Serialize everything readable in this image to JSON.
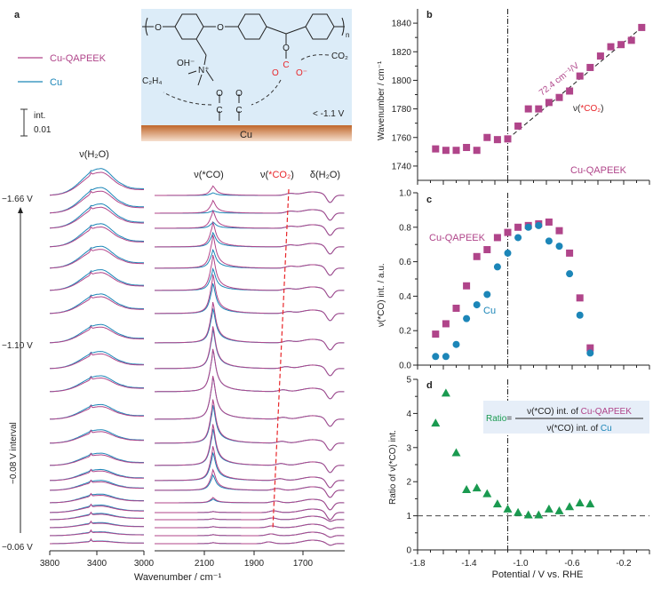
{
  "panel_a": {
    "label": "a",
    "legend": [
      {
        "name": "Cu-QAPEEK",
        "color": "#b0458a"
      },
      {
        "name": "Cu",
        "color": "#1c86b8"
      }
    ],
    "scale_bar": {
      "line1": "int.",
      "line2": "0.01"
    },
    "scheme": {
      "oh": "OH⁻",
      "n_plus": "N⁺",
      "o": "O",
      "n_sub": "n",
      "co2": "CO₂",
      "c2h4": "C₂H₄",
      "carboxylate_c": "C",
      "carboxylate_o1": "O",
      "carboxylate_o2": "O⁻",
      "co_c": "C",
      "co_o": "O",
      "potential": "< -1.1 V",
      "surface": "Cu"
    },
    "peak_labels": {
      "water": "ν(H₂O)",
      "co": "ν(*CO)",
      "co2_prefix": "ν(",
      "co2_mid": "*CO₂",
      "co2_suffix": ")",
      "bend": "δ(H₂O)"
    },
    "potential_labels": {
      "top": "−1.66 V",
      "mid": "−1.10 V",
      "bottom": "−0.06 V",
      "interval": "−0.08 V interval"
    },
    "xlabel": "Wavenumber / cm⁻¹",
    "xticks_left": [
      "3800",
      "3400",
      "3000"
    ],
    "xticks_right": [
      "2100",
      "1900",
      "1700"
    ]
  },
  "chart_data": [
    {
      "id": "b",
      "type": "scatter",
      "panel_label": "b",
      "ylabel": "Wavenumber / cm⁻¹",
      "xlim": [
        -1.8,
        0.0
      ],
      "ylim": [
        1730,
        1850
      ],
      "yticks": [
        "1740",
        "1760",
        "1780",
        "1800",
        "1820",
        "1840"
      ],
      "annotations": {
        "slope": "72.4 cm⁻¹/V",
        "species_prefix": "ν(",
        "species_mid": "*CO₂",
        "species_suffix": ")",
        "sample": "Cu-QAPEEK"
      },
      "fit_line": {
        "x": [
          -1.1,
          -0.06
        ],
        "y": [
          1759,
          1837
        ]
      },
      "vline_x": -1.1,
      "series": [
        {
          "name": "Cu-QAPEEK",
          "color": "#b0458a",
          "marker": "square",
          "x": [
            -1.66,
            -1.58,
            -1.5,
            -1.42,
            -1.34,
            -1.26,
            -1.18,
            -1.1,
            -1.02,
            -0.94,
            -0.86,
            -0.78,
            -0.7,
            -0.62,
            -0.54,
            -0.46,
            -0.38,
            -0.3,
            -0.22,
            -0.14,
            -0.06
          ],
          "y": [
            1752,
            1751,
            1751,
            1753,
            1751,
            1760,
            1758.5,
            1759,
            1768,
            1780,
            1780,
            1784.5,
            1788,
            1792.5,
            1803,
            1809,
            1817,
            1823.5,
            1825,
            1828,
            1837
          ]
        }
      ]
    },
    {
      "id": "c",
      "type": "scatter",
      "panel_label": "c",
      "ylabel": "ν(*CO) int. / a.u.",
      "xlim": [
        -1.8,
        0.0
      ],
      "ylim": [
        0,
        1.0
      ],
      "yticks": [
        "0.0",
        "0.2",
        "0.4",
        "0.6",
        "0.8",
        "1.0"
      ],
      "vline_x": -1.1,
      "series": [
        {
          "name": "Cu-QAPEEK",
          "color": "#b0458a",
          "marker": "square",
          "x": [
            -1.66,
            -1.58,
            -1.5,
            -1.42,
            -1.34,
            -1.26,
            -1.18,
            -1.1,
            -1.02,
            -0.94,
            -0.86,
            -0.78,
            -0.7,
            -0.62,
            -0.54,
            -0.46
          ],
          "y": [
            0.18,
            0.24,
            0.33,
            0.46,
            0.63,
            0.67,
            0.74,
            0.77,
            0.8,
            0.81,
            0.82,
            0.83,
            0.78,
            0.65,
            0.39,
            0.1
          ]
        },
        {
          "name": "Cu",
          "color": "#1c86b8",
          "marker": "circle",
          "x": [
            -1.66,
            -1.58,
            -1.5,
            -1.42,
            -1.34,
            -1.26,
            -1.18,
            -1.1,
            -1.02,
            -0.94,
            -0.86,
            -0.78,
            -0.7,
            -0.62,
            -0.54,
            -0.46
          ],
          "y": [
            0.05,
            0.05,
            0.12,
            0.27,
            0.35,
            0.41,
            0.57,
            0.65,
            0.74,
            0.8,
            0.81,
            0.72,
            0.69,
            0.53,
            0.29,
            0.07
          ]
        }
      ]
    },
    {
      "id": "d",
      "type": "scatter",
      "panel_label": "d",
      "ylabel": "Ratio of ν(*CO) int.",
      "xlabel": "Potential / V vs. RHE",
      "xlim": [
        -1.8,
        0.0
      ],
      "ylim": [
        0,
        5
      ],
      "xticks": [
        "-1.8",
        "-1.4",
        "-1.0",
        "-0.6",
        "-0.2"
      ],
      "yticks": [
        "0",
        "1",
        "2",
        "3",
        "4",
        "5"
      ],
      "vline_x": -1.1,
      "hline_y": 1,
      "formula": {
        "lhs": "Ratio",
        "eq": "=",
        "num_prefix": "ν(*CO) int. of ",
        "num_sample": "Cu-QAPEEK",
        "den_prefix": "ν(*CO) int. of ",
        "den_sample": "Cu"
      },
      "series": [
        {
          "name": "Ratio",
          "color": "#1a9a50",
          "marker": "triangle",
          "x": [
            -1.66,
            -1.58,
            -1.5,
            -1.42,
            -1.34,
            -1.26,
            -1.18,
            -1.1,
            -1.02,
            -0.94,
            -0.86,
            -0.78,
            -0.7,
            -0.62,
            -0.54,
            -0.46
          ],
          "y": [
            3.72,
            4.6,
            2.85,
            1.77,
            1.82,
            1.65,
            1.35,
            1.2,
            1.1,
            1.03,
            1.03,
            1.2,
            1.15,
            1.27,
            1.38,
            1.35
          ]
        }
      ]
    }
  ]
}
